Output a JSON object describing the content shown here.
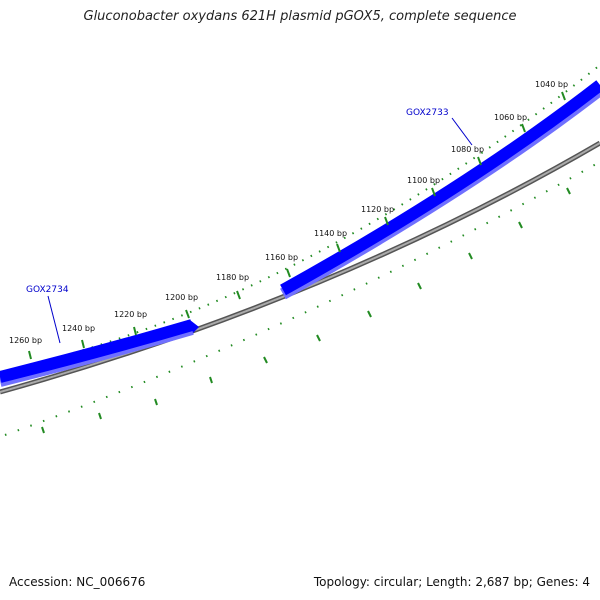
{
  "title": "Gluconobacter oxydans 621H plasmid pGOX5, complete sequence",
  "footer": {
    "accession": "Accession: NC_006676",
    "summary": "Topology: circular; Length: 2,687 bp; Genes: 4"
  },
  "colors": {
    "gene_fill": "#0000ff",
    "gene_shadow": "#7070ff",
    "backbone": "#808080",
    "tick": "#228b22",
    "gene_label": "#0000cc"
  },
  "ticks": [
    {
      "label": "1040 bp"
    },
    {
      "label": "1060 bp"
    },
    {
      "label": "1080 bp"
    },
    {
      "label": "1100 bp"
    },
    {
      "label": "1120 bp"
    },
    {
      "label": "1140 bp"
    },
    {
      "label": "1160 bp"
    },
    {
      "label": "1180 bp"
    },
    {
      "label": "1200 bp"
    },
    {
      "label": "1220 bp"
    },
    {
      "label": "1240 bp"
    },
    {
      "label": "1260 bp"
    }
  ],
  "genes": [
    {
      "name": "GOX2733"
    },
    {
      "name": "GOX2734"
    }
  ]
}
